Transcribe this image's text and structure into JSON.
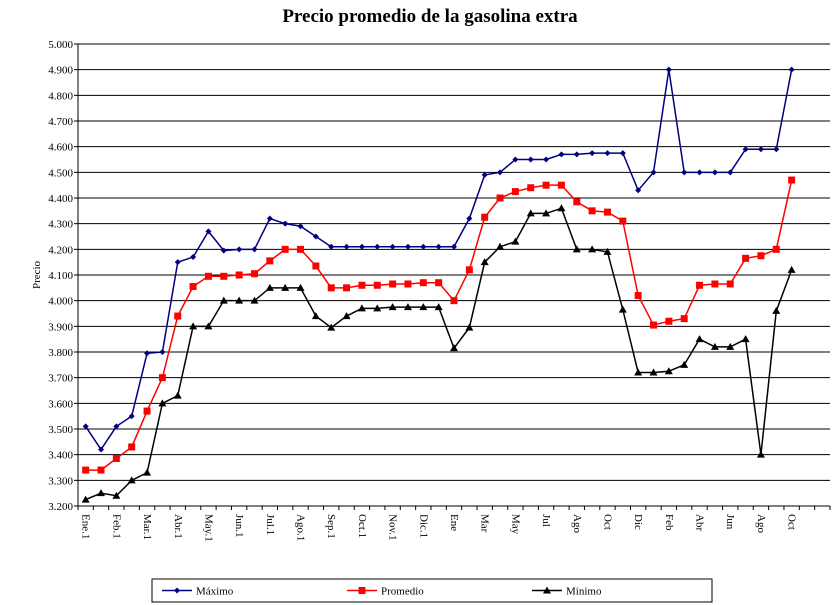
{
  "chart_data": {
    "type": "line",
    "title": "Precio promedio de la gasolina extra",
    "ylabel": "Precio",
    "categories": [
      "Ene.1",
      null,
      "Feb.1",
      null,
      "Mar.1",
      null,
      "Abr.1",
      null,
      "May.1",
      null,
      "Jun.1",
      null,
      "Jul.1",
      null,
      "Ago.1",
      null,
      "Sep.1",
      null,
      "Oct.1",
      null,
      "Nov.1",
      null,
      "Dic.1",
      null,
      "Ene",
      null,
      "Mar",
      null,
      "May",
      null,
      "Jul",
      null,
      "Ago",
      null,
      "Oct",
      null,
      "Dic",
      null,
      "Feb",
      null,
      "Abr",
      null,
      "Jun",
      null,
      "Ago",
      null,
      "Oct",
      null,
      null
    ],
    "series": [
      {
        "name": "Máximo",
        "color": "#000080",
        "marker": "diamond",
        "values": [
          3510,
          3420,
          3510,
          3550,
          3795,
          3800,
          4150,
          4170,
          4270,
          4195,
          4200,
          4200,
          4320,
          4300,
          4290,
          4250,
          4210,
          4210,
          4210,
          4210,
          4210,
          4210,
          4210,
          4210,
          4210,
          4320,
          4490,
          4500,
          4550,
          4550,
          4550,
          4570,
          4570,
          4575,
          4575,
          4575,
          4430,
          4500,
          4900,
          4500,
          4500,
          4500,
          4500,
          4590,
          4590,
          4590,
          4900,
          null,
          null
        ]
      },
      {
        "name": "Promedio",
        "color": "#ff0000",
        "marker": "square",
        "values": [
          3340,
          3340,
          3385,
          3430,
          3570,
          3700,
          3940,
          4055,
          4095,
          4095,
          4100,
          4105,
          4155,
          4200,
          4200,
          4135,
          4050,
          4050,
          4060,
          4060,
          4065,
          4065,
          4070,
          4070,
          4000,
          4120,
          4325,
          4400,
          4425,
          4440,
          4450,
          4450,
          4385,
          4350,
          4345,
          4310,
          4020,
          3905,
          3920,
          3930,
          4060,
          4065,
          4065,
          4165,
          4175,
          4200,
          4470,
          null,
          null
        ]
      },
      {
        "name": "Mínimo",
        "color": "#000000",
        "marker": "triangle",
        "values": [
          3225,
          3250,
          3240,
          3300,
          3330,
          3600,
          3630,
          3900,
          3900,
          4000,
          4000,
          4000,
          4050,
          4050,
          4050,
          3940,
          3895,
          3940,
          3970,
          3970,
          3975,
          3975,
          3975,
          3975,
          3815,
          3895,
          4150,
          4210,
          4230,
          4340,
          4340,
          4360,
          4200,
          4200,
          4190,
          3965,
          3720,
          3720,
          3725,
          3750,
          3850,
          3820,
          3820,
          3850,
          3400,
          3960,
          4120,
          null,
          null
        ]
      }
    ],
    "ylim": [
      3200,
      5000
    ],
    "yticks": [
      {
        "value": 3200,
        "label": "3.200"
      },
      {
        "value": 3300,
        "label": "3.300"
      },
      {
        "value": 3400,
        "label": "3.400"
      },
      {
        "value": 3500,
        "label": "3.500"
      },
      {
        "value": 3600,
        "label": "3.600"
      },
      {
        "value": 3700,
        "label": "3.700"
      },
      {
        "value": 3800,
        "label": "3.800"
      },
      {
        "value": 3900,
        "label": "3.900"
      },
      {
        "value": 4000,
        "label": "4.000"
      },
      {
        "value": 4100,
        "label": "4.100"
      },
      {
        "value": 4200,
        "label": "4.200"
      },
      {
        "value": 4300,
        "label": "4.300"
      },
      {
        "value": 4400,
        "label": "4.400"
      },
      {
        "value": 4500,
        "label": "4.500"
      },
      {
        "value": 4600,
        "label": "4.600"
      },
      {
        "value": 4700,
        "label": "4.700"
      },
      {
        "value": 4800,
        "label": "4.800"
      },
      {
        "value": 4900,
        "label": "4.900"
      },
      {
        "value": 5000,
        "label": "5.000"
      }
    ],
    "grid": true,
    "legend": "bottom"
  }
}
